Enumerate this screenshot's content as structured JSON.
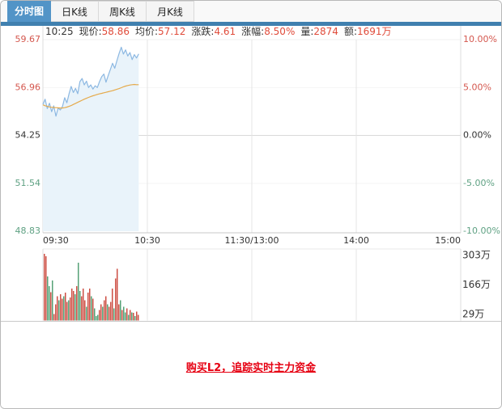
{
  "tabs": {
    "items": [
      {
        "label": "分时图",
        "active": true
      },
      {
        "label": "日K线",
        "active": false
      },
      {
        "label": "周K线",
        "active": false
      },
      {
        "label": "月K线",
        "active": false
      }
    ]
  },
  "status": {
    "time": "10:25",
    "fields": [
      {
        "label": "现价:",
        "value": "58.86"
      },
      {
        "label": "均价:",
        "value": "57.12"
      },
      {
        "label": "涨跌:",
        "value": "4.61"
      },
      {
        "label": "涨幅:",
        "value": "8.50%"
      },
      {
        "label": "量:",
        "value": "2874"
      },
      {
        "label": "额:",
        "value": "1691万"
      }
    ]
  },
  "footer": {
    "link_text": "购买L2，追踪实时主力资金"
  },
  "colors": {
    "accent_blue": "#5294c7",
    "indicator_bar": "#4080af",
    "value_red": "#e04b3a",
    "up_red": "#d4574e",
    "down_green": "#5fa183",
    "axis_black": "#333333",
    "line_blue": "#8cb8e2",
    "area_blue": "#e9f3fa",
    "avg_orange": "#e5aa4b",
    "vol_up_red": "#cd4f44",
    "vol_down_green": "#55a176",
    "link_red": "#e60012",
    "grid_gray": "#e4e4e4",
    "border_gray": "#d9d9d9"
  },
  "chart_data": [
    {
      "type": "line",
      "name": "intraday-price",
      "x_axis": {
        "labels": [
          "09:30",
          "10:30",
          "11:30/13:00",
          "14:00",
          "15:00"
        ],
        "minutes_total": 240,
        "minutes_elapsed": 55
      },
      "y_axis_left": {
        "labels": [
          "59.67",
          "56.96",
          "54.25",
          "51.54",
          "48.83"
        ],
        "sentiment": [
          "up",
          "up",
          "flat",
          "down",
          "down"
        ]
      },
      "y_axis_right": {
        "labels": [
          "10.00%",
          "5.00%",
          "0.00%",
          "-5.00%",
          "-10.00%"
        ],
        "sentiment": [
          "up",
          "up",
          "flat",
          "down",
          "down"
        ]
      },
      "ylim": [
        48.83,
        59.67
      ],
      "prev_close": 54.25,
      "current_price": 58.86,
      "average_price": 57.12,
      "series": [
        {
          "name": "price",
          "color_key": "line_blue",
          "fill_key": "area_blue",
          "values": [
            56.0,
            56.3,
            55.77,
            56.07,
            55.59,
            55.92,
            55.34,
            55.8,
            55.69,
            55.89,
            56.38,
            56.1,
            56.61,
            57.02,
            56.68,
            56.91,
            56.61,
            57.29,
            57.47,
            57.11,
            57.32,
            56.96,
            57.11,
            56.87,
            57.06,
            56.96,
            57.29,
            57.57,
            57.72,
            57.26,
            57.63,
            57.98,
            58.33,
            58.05,
            58.48,
            58.89,
            59.24,
            58.85,
            59.09,
            58.74,
            58.94,
            58.54,
            58.82,
            58.63,
            58.86
          ]
        },
        {
          "name": "avg",
          "color_key": "avg_orange",
          "values": [
            55.98,
            55.93,
            55.89,
            55.86,
            55.84,
            55.83,
            55.82,
            55.81,
            55.8,
            55.8,
            55.82,
            55.85,
            55.89,
            55.94,
            56.0,
            56.06,
            56.12,
            56.18,
            56.24,
            56.3,
            56.35,
            56.4,
            56.45,
            56.49,
            56.53,
            56.57,
            56.6,
            56.63,
            56.66,
            56.69,
            56.72,
            56.75,
            56.78,
            56.82,
            56.86,
            56.9,
            56.95,
            57.0,
            57.04,
            57.07,
            57.1,
            57.12,
            57.13,
            57.12,
            57.12
          ]
        }
      ]
    },
    {
      "type": "bar",
      "name": "volume",
      "unit": "万",
      "y_axis_right": {
        "labels": [
          "303万",
          "166万",
          "29万"
        ],
        "values": [
          303,
          166,
          29
        ]
      },
      "values": [
        310,
        300,
        205,
        160,
        131,
        186,
        30,
        75,
        112,
        94,
        123,
        101,
        112,
        130,
        86,
        94,
        108,
        149,
        138,
        123,
        160,
        270,
        138,
        112,
        149,
        94,
        64,
        130,
        149,
        112,
        101,
        57,
        20,
        27,
        49,
        75,
        64,
        94,
        112,
        75,
        64,
        86,
        149,
        57,
        196,
        240,
        75,
        94,
        49,
        64,
        38,
        57,
        27,
        49,
        38,
        35,
        20,
        42,
        27
      ],
      "dirs": "rrggrgrrrgrrgrrgrrrgrggrrrgrrgrgggrrgrrgrrrgrrrgrggrgrgrgrr"
    }
  ]
}
